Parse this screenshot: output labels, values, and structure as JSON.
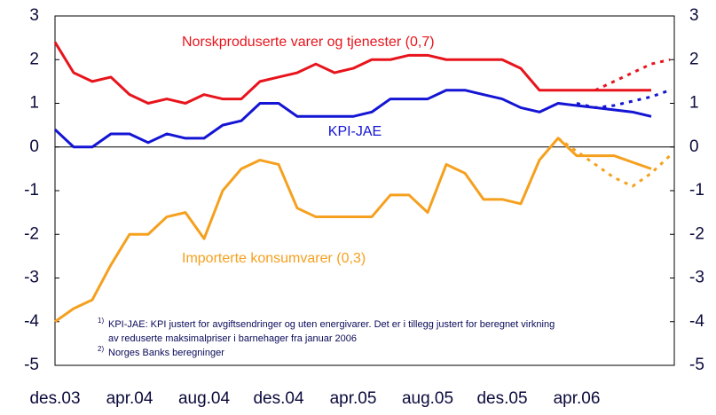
{
  "chart_data": {
    "type": "line",
    "categories": [
      "des.03",
      null,
      null,
      null,
      "apr.04",
      null,
      null,
      null,
      "aug.04",
      null,
      null,
      null,
      "des.04",
      null,
      null,
      null,
      "apr.05",
      null,
      null,
      null,
      "aug.05",
      null,
      null,
      null,
      "des.05",
      null,
      null,
      null,
      "apr.06",
      null,
      null,
      null,
      null,
      null
    ],
    "series": [
      {
        "name": "Norskproduserte varer og tjenester (0,7)",
        "color": "#e8141c",
        "dashed": false,
        "values": [
          2.4,
          1.7,
          1.5,
          1.6,
          1.2,
          1.0,
          1.1,
          1.0,
          1.2,
          1.1,
          1.1,
          1.5,
          1.6,
          1.7,
          1.9,
          1.7,
          1.8,
          2.0,
          2.0,
          2.1,
          2.1,
          2.0,
          2.0,
          2.0,
          2.0,
          1.8,
          1.3,
          1.3,
          1.3,
          1.3,
          1.3,
          1.3,
          1.3,
          null
        ]
      },
      {
        "color": "#e8141c",
        "dashed": true,
        "values": [
          null,
          null,
          null,
          null,
          null,
          null,
          null,
          null,
          null,
          null,
          null,
          null,
          null,
          null,
          null,
          null,
          null,
          null,
          null,
          null,
          null,
          null,
          null,
          null,
          null,
          null,
          null,
          null,
          null,
          1.3,
          1.5,
          1.7,
          1.9,
          2.0
        ]
      },
      {
        "name": "KPI-JAE",
        "color": "#1414d4",
        "dashed": false,
        "values": [
          0.4,
          0.0,
          0.0,
          0.3,
          0.3,
          0.1,
          0.3,
          0.2,
          0.2,
          0.5,
          0.6,
          1.0,
          1.0,
          0.7,
          0.7,
          0.7,
          0.7,
          0.8,
          1.1,
          1.1,
          1.1,
          1.3,
          1.3,
          1.2,
          1.1,
          0.9,
          0.8,
          1.0,
          0.95,
          0.9,
          0.85,
          0.8,
          0.7,
          null
        ]
      },
      {
        "color": "#1414d4",
        "dashed": true,
        "values": [
          null,
          null,
          null,
          null,
          null,
          null,
          null,
          null,
          null,
          null,
          null,
          null,
          null,
          null,
          null,
          null,
          null,
          null,
          null,
          null,
          null,
          null,
          null,
          null,
          null,
          null,
          null,
          null,
          1.0,
          0.9,
          0.95,
          1.05,
          1.15,
          1.3
        ]
      },
      {
        "name": "Importerte konsumvarer (0,3)",
        "color": "#f5a01e",
        "dashed": false,
        "values": [
          -4.0,
          -3.7,
          -3.5,
          -2.7,
          -2.0,
          -2.0,
          -1.6,
          -1.5,
          -2.1,
          -1.0,
          -0.5,
          -0.3,
          -0.4,
          -1.4,
          -1.6,
          -1.6,
          -1.6,
          -1.6,
          -1.1,
          -1.1,
          -1.5,
          -0.4,
          -0.6,
          -1.2,
          -1.2,
          -1.3,
          -0.3,
          0.2,
          -0.2,
          -0.2,
          -0.2,
          -0.35,
          -0.5,
          null
        ]
      },
      {
        "color": "#f5a01e",
        "dashed": true,
        "values": [
          null,
          null,
          null,
          null,
          null,
          null,
          null,
          null,
          null,
          null,
          null,
          null,
          null,
          null,
          null,
          null,
          null,
          null,
          null,
          null,
          null,
          null,
          null,
          null,
          null,
          null,
          null,
          0.2,
          -0.1,
          -0.4,
          -0.7,
          -0.9,
          -0.6,
          -0.2
        ]
      }
    ],
    "ylim": [
      -5,
      3
    ],
    "yticks": [
      -5,
      -4,
      -3,
      -2,
      -1,
      0,
      1,
      2,
      3
    ],
    "y2lim": [
      -5,
      3
    ],
    "y2ticks": [
      -5,
      -4,
      -3,
      -2,
      -1,
      0,
      1,
      2,
      3
    ],
    "footnotes": [
      {
        "mark": "1)",
        "text": "KPI-JAE: KPI justert for avgiftsendringer og uten energivarer. Det er i tillegg justert for beregnet virkning"
      },
      {
        "text": "av reduserte maksimalpriser i barnehager fra januar 2006"
      },
      {
        "mark": "2)",
        "text": "Norges Banks beregninger"
      }
    ]
  }
}
